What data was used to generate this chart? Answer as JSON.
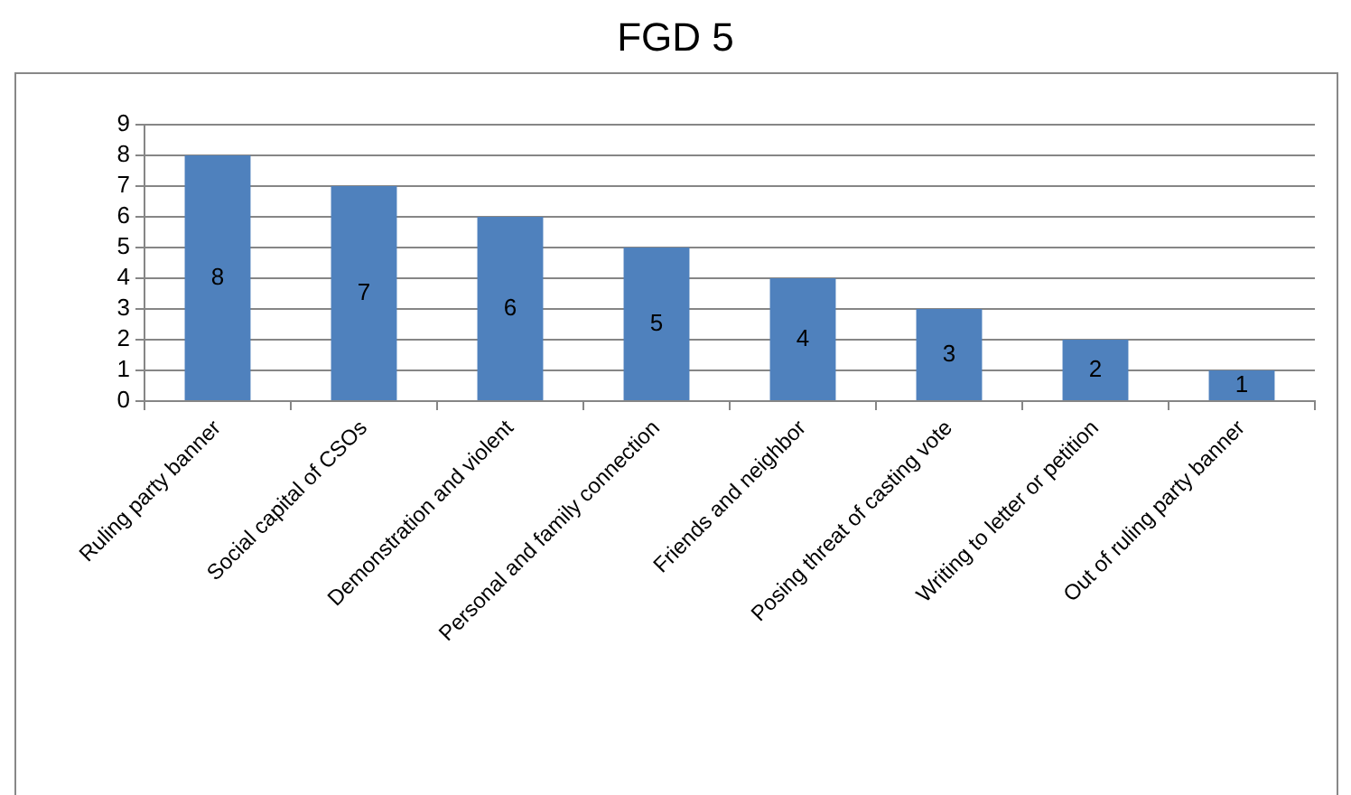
{
  "chart_data": {
    "type": "bar",
    "title": "FGD 5",
    "categories": [
      "Ruling party banner",
      "Social capital of CSOs",
      "Demonstration and violent",
      "Personal and family connection",
      "Friends and neighbor",
      "Posing threat of casting vote",
      "Writing to letter or petition",
      "Out of ruling party banner"
    ],
    "values": [
      8,
      7,
      6,
      5,
      4,
      3,
      2,
      1
    ],
    "color": "#4f81bd",
    "ylim": [
      0,
      9
    ],
    "yticks": [
      0,
      1,
      2,
      3,
      4,
      5,
      6,
      7,
      8,
      9
    ],
    "grid": "y",
    "data_labels": true,
    "legend": false
  }
}
